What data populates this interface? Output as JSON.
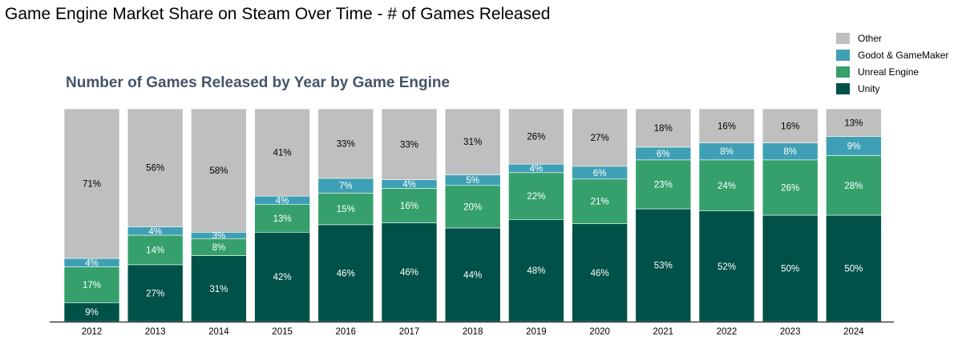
{
  "title": "Game Engine Market Share on Steam Over Time - # of Games Released",
  "chart_data": {
    "type": "bar",
    "stacked": true,
    "normalized_percent": true,
    "title": "Number of Games Released by Year by Game Engine",
    "xlabel": "",
    "ylabel": "",
    "ylim": [
      0,
      100
    ],
    "grid": false,
    "legend_position": "top-right",
    "categories": [
      "2012",
      "2013",
      "2014",
      "2015",
      "2016",
      "2017",
      "2018",
      "2019",
      "2020",
      "2021",
      "2022",
      "2023",
      "2024"
    ],
    "series": [
      {
        "name": "Unity",
        "color": "#005148",
        "values": [
          9,
          27,
          31,
          42,
          46,
          46,
          44,
          48,
          46,
          53,
          52,
          50,
          50
        ]
      },
      {
        "name": "Unreal Engine",
        "color": "#35a06c",
        "values": [
          17,
          14,
          8,
          13,
          15,
          16,
          20,
          22,
          21,
          23,
          24,
          26,
          28
        ]
      },
      {
        "name": "Godot & GameMaker",
        "color": "#3fa0b5",
        "values": [
          4,
          4,
          3,
          4,
          7,
          4,
          5,
          4,
          6,
          6,
          8,
          8,
          9
        ]
      },
      {
        "name": "Other",
        "color": "#bfbfbf",
        "values": [
          71,
          56,
          58,
          41,
          33,
          33,
          31,
          26,
          27,
          18,
          16,
          16,
          13
        ]
      }
    ],
    "legend_order": [
      "Other",
      "Godot & GameMaker",
      "Unreal Engine",
      "Unity"
    ]
  }
}
